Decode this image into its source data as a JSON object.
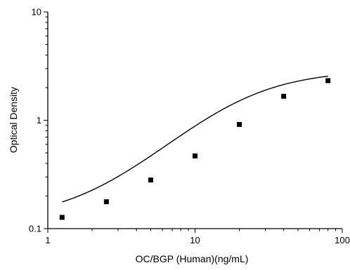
{
  "chart_data": {
    "type": "scatter",
    "title": "",
    "xlabel": "OC/BGP (Human)(ng/mL)",
    "ylabel": "Optical Density",
    "x_scale": "log",
    "y_scale": "log",
    "xlim": [
      1,
      100
    ],
    "ylim": [
      0.1,
      10
    ],
    "x_ticks": [
      {
        "value": 1,
        "label": "1"
      },
      {
        "value": 10,
        "label": "10"
      },
      {
        "value": 100,
        "label": "100"
      }
    ],
    "y_ticks": [
      {
        "value": 0.1,
        "label": "0.1"
      },
      {
        "value": 1,
        "label": "1"
      },
      {
        "value": 10,
        "label": "10"
      }
    ],
    "grid": false,
    "legend": "none",
    "series": [
      {
        "points": [
          {
            "x": 1.25,
            "y": 0.127
          },
          {
            "x": 2.5,
            "y": 0.177
          },
          {
            "x": 5,
            "y": 0.281
          },
          {
            "x": 10,
            "y": 0.469
          },
          {
            "x": 20,
            "y": 0.915
          },
          {
            "x": 40,
            "y": 1.665
          },
          {
            "x": 80,
            "y": 2.32
          }
        ]
      }
    ],
    "fit_curve": {
      "model": "4PL",
      "bottom": 0.12,
      "top": 2.9,
      "ec50": 20,
      "hill": 1.4
    },
    "colors": {
      "marker": "#000000",
      "line": "#000000",
      "axis": "#000000"
    }
  }
}
